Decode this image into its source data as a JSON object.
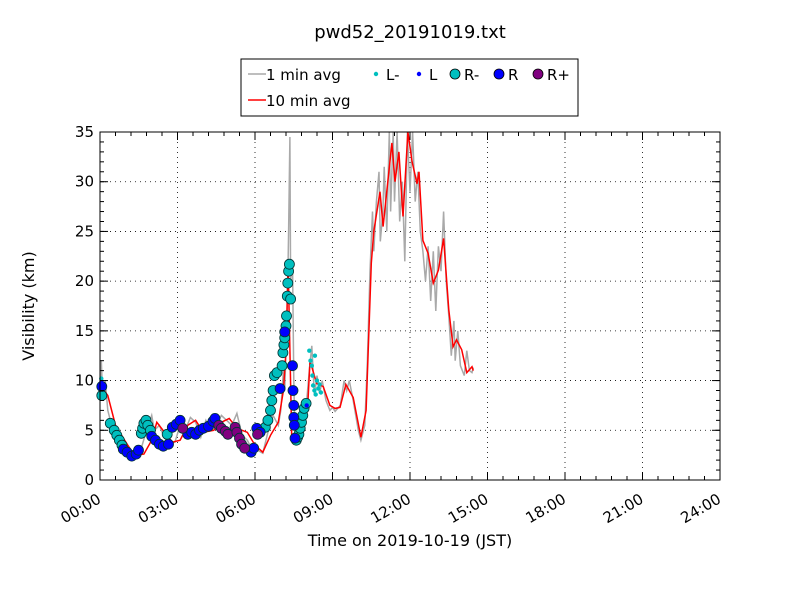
{
  "chart_data": {
    "type": "line",
    "title": "pwd52_20191019.txt",
    "xlabel": "Time on 2019-10-19 (JST)",
    "ylabel": "Visibility (km)",
    "xlim": [
      0,
      24
    ],
    "ylim": [
      0,
      35
    ],
    "x_unit": "hours",
    "xticks": [
      0,
      3,
      6,
      9,
      12,
      15,
      18,
      21,
      24
    ],
    "xtick_labels": [
      "00:00",
      "03:00",
      "06:00",
      "09:00",
      "12:00",
      "15:00",
      "18:00",
      "21:00",
      "24:00"
    ],
    "yticks": [
      0,
      5,
      10,
      15,
      20,
      25,
      30,
      35
    ],
    "ytick_labels": [
      "0",
      "5",
      "10",
      "15",
      "20",
      "25",
      "30",
      "35"
    ],
    "grid": true,
    "legend_placement": "top-center, above plot",
    "legend": [
      "1 min avg",
      "L-",
      "L",
      "R-",
      "R",
      "R+",
      "10 min avg"
    ],
    "colors": {
      "gray": "#a9a9a9",
      "red": "#ff0000",
      "L-": "#00bfbf",
      "L": "#0000ff",
      "R-": "#00bfbf",
      "R": "#0000ff",
      "R+": "#800080"
    },
    "series": [
      {
        "name": "1 min avg",
        "points": [
          [
            0,
            9.8
          ],
          [
            0.05,
            12
          ],
          [
            0.1,
            8.5
          ],
          [
            0.2,
            10
          ],
          [
            0.3,
            7
          ],
          [
            0.45,
            5.5
          ],
          [
            0.6,
            5
          ],
          [
            0.8,
            4
          ],
          [
            1.0,
            3
          ],
          [
            1.2,
            2.3
          ],
          [
            1.4,
            2.6
          ],
          [
            1.6,
            3.2
          ],
          [
            1.8,
            5
          ],
          [
            2.0,
            6.5
          ],
          [
            2.1,
            5
          ],
          [
            2.3,
            5.5
          ],
          [
            2.5,
            4.2
          ],
          [
            2.7,
            3.7
          ],
          [
            2.9,
            3.8
          ],
          [
            3.1,
            5.5
          ],
          [
            3.3,
            5
          ],
          [
            3.5,
            6.3
          ],
          [
            3.7,
            5.8
          ],
          [
            3.9,
            4.3
          ],
          [
            4.1,
            6
          ],
          [
            4.3,
            5
          ],
          [
            4.5,
            5.5
          ],
          [
            4.7,
            6.5
          ],
          [
            4.9,
            6
          ],
          [
            5.1,
            5.5
          ],
          [
            5.3,
            6.7
          ],
          [
            5.5,
            4.5
          ],
          [
            5.7,
            4
          ],
          [
            5.9,
            3
          ],
          [
            6.1,
            3
          ],
          [
            6.3,
            2.7
          ],
          [
            6.5,
            4.8
          ],
          [
            6.7,
            6.5
          ],
          [
            6.9,
            5.5
          ],
          [
            7.0,
            7
          ],
          [
            7.1,
            11
          ],
          [
            7.15,
            9
          ],
          [
            7.25,
            17
          ],
          [
            7.3,
            25
          ],
          [
            7.35,
            34.5
          ],
          [
            7.38,
            20
          ],
          [
            7.45,
            22
          ],
          [
            7.5,
            10
          ],
          [
            7.55,
            4
          ],
          [
            7.6,
            3.5
          ],
          [
            7.7,
            5
          ],
          [
            7.85,
            6.5
          ],
          [
            8.0,
            8
          ],
          [
            8.1,
            11
          ],
          [
            8.2,
            13.5
          ],
          [
            8.3,
            8.5
          ],
          [
            8.4,
            10.5
          ],
          [
            8.5,
            8.7
          ],
          [
            8.6,
            10
          ],
          [
            8.75,
            8
          ],
          [
            8.9,
            7
          ],
          [
            9.0,
            7.3
          ],
          [
            9.1,
            6.9
          ],
          [
            9.3,
            7.5
          ],
          [
            9.45,
            10
          ],
          [
            9.55,
            9
          ],
          [
            9.65,
            10
          ],
          [
            9.8,
            8
          ],
          [
            10.0,
            5
          ],
          [
            10.1,
            4
          ],
          [
            10.25,
            5.5
          ],
          [
            10.35,
            12
          ],
          [
            10.45,
            21
          ],
          [
            10.55,
            27
          ],
          [
            10.6,
            23
          ],
          [
            10.7,
            28
          ],
          [
            10.8,
            31
          ],
          [
            10.85,
            24
          ],
          [
            10.95,
            27
          ],
          [
            11.0,
            31.5
          ],
          [
            11.1,
            25
          ],
          [
            11.2,
            35
          ],
          [
            11.25,
            27
          ],
          [
            11.35,
            35
          ],
          [
            11.4,
            28
          ],
          [
            11.5,
            35
          ],
          [
            11.6,
            26
          ],
          [
            11.7,
            30
          ],
          [
            11.8,
            22
          ],
          [
            11.9,
            35
          ],
          [
            12.0,
            29
          ],
          [
            12.1,
            35
          ],
          [
            12.2,
            28
          ],
          [
            12.3,
            31
          ],
          [
            12.4,
            25
          ],
          [
            12.5,
            23
          ],
          [
            12.6,
            20
          ],
          [
            12.7,
            23.5
          ],
          [
            12.8,
            18
          ],
          [
            12.9,
            23
          ],
          [
            13.0,
            17
          ],
          [
            13.1,
            23.5
          ],
          [
            13.2,
            21
          ],
          [
            13.3,
            27
          ],
          [
            13.4,
            20
          ],
          [
            13.5,
            16.5
          ],
          [
            13.6,
            12.5
          ],
          [
            13.7,
            16
          ],
          [
            13.75,
            12
          ],
          [
            13.85,
            15
          ],
          [
            13.95,
            11.5
          ],
          [
            14.1,
            10.5
          ],
          [
            14.2,
            13
          ],
          [
            14.3,
            11
          ],
          [
            14.4,
            10.8
          ],
          [
            14.45,
            11.3
          ]
        ]
      },
      {
        "name": "10 min avg",
        "points": [
          [
            0,
            9.5
          ],
          [
            0.3,
            8.5
          ],
          [
            0.6,
            5.5
          ],
          [
            0.9,
            4.2
          ],
          [
            1.2,
            3.0
          ],
          [
            1.4,
            2.5
          ],
          [
            1.7,
            2.6
          ],
          [
            2.0,
            4.0
          ],
          [
            2.2,
            5.8
          ],
          [
            2.5,
            4.8
          ],
          [
            2.8,
            3.8
          ],
          [
            3.1,
            4.0
          ],
          [
            3.4,
            5.5
          ],
          [
            3.7,
            6.0
          ],
          [
            4.0,
            4.8
          ],
          [
            4.4,
            5.0
          ],
          [
            4.7,
            5.8
          ],
          [
            5.0,
            6.2
          ],
          [
            5.3,
            5.2
          ],
          [
            5.7,
            4.8
          ],
          [
            6.0,
            3.5
          ],
          [
            6.3,
            2.8
          ],
          [
            6.6,
            4.5
          ],
          [
            6.9,
            5.8
          ],
          [
            7.1,
            9
          ],
          [
            7.2,
            13
          ],
          [
            7.28,
            21.8
          ],
          [
            7.42,
            4.4
          ],
          [
            7.6,
            4.2
          ],
          [
            8.05,
            8
          ],
          [
            8.13,
            12
          ],
          [
            8.39,
            9.7
          ],
          [
            8.64,
            9.4
          ],
          [
            8.9,
            7.5
          ],
          [
            9.1,
            7.2
          ],
          [
            9.29,
            7.3
          ],
          [
            9.52,
            9.6
          ],
          [
            9.8,
            8.3
          ],
          [
            10.1,
            4.3
          ],
          [
            10.3,
            7
          ],
          [
            10.5,
            21.8
          ],
          [
            10.6,
            25
          ],
          [
            10.84,
            29
          ],
          [
            10.96,
            25.5
          ],
          [
            11.3,
            33.9
          ],
          [
            11.42,
            30
          ],
          [
            11.57,
            33
          ],
          [
            11.73,
            26.5
          ],
          [
            11.92,
            35
          ],
          [
            12.08,
            32
          ],
          [
            12.27,
            29.8
          ],
          [
            12.35,
            31
          ],
          [
            12.5,
            24.1
          ],
          [
            12.7,
            22.8
          ],
          [
            12.9,
            19.8
          ],
          [
            13.1,
            21.1
          ],
          [
            13.3,
            24.3
          ],
          [
            13.5,
            17.1
          ],
          [
            13.67,
            13.4
          ],
          [
            13.8,
            14.1
          ],
          [
            14.0,
            13.1
          ],
          [
            14.2,
            10.8
          ],
          [
            14.4,
            11.4
          ],
          [
            14.45,
            11.0
          ]
        ]
      }
    ],
    "markers": {
      "L-": [
        [
          0.05,
          10.2
        ],
        [
          8.1,
          13
        ],
        [
          8.15,
          12
        ],
        [
          8.2,
          11.5
        ],
        [
          8.22,
          10.5
        ],
        [
          8.25,
          9.5
        ],
        [
          8.3,
          9
        ],
        [
          8.32,
          12.5
        ],
        [
          8.35,
          8.6
        ],
        [
          8.4,
          10
        ],
        [
          8.45,
          9.2
        ],
        [
          8.5,
          9.6
        ],
        [
          8.55,
          8.8
        ]
      ],
      "L": [
        [
          0.05,
          9.8
        ],
        [
          8.0,
          7.5
        ]
      ],
      "R-": [
        [
          0.07,
          8.5
        ],
        [
          0.4,
          5.7
        ],
        [
          0.55,
          5
        ],
        [
          0.65,
          4.5
        ],
        [
          0.75,
          4
        ],
        [
          0.85,
          3.5
        ],
        [
          1.6,
          4.7
        ],
        [
          1.65,
          5.2
        ],
        [
          1.7,
          5.7
        ],
        [
          1.78,
          6
        ],
        [
          1.85,
          5.5
        ],
        [
          1.95,
          5
        ],
        [
          2.6,
          4.6
        ],
        [
          6.4,
          5.3
        ],
        [
          6.5,
          6
        ],
        [
          6.6,
          7
        ],
        [
          6.65,
          8
        ],
        [
          6.7,
          9
        ],
        [
          6.75,
          10.5
        ],
        [
          6.85,
          10.8
        ],
        [
          7.05,
          11.5
        ],
        [
          7.08,
          12.8
        ],
        [
          7.12,
          13.6
        ],
        [
          7.15,
          14.3
        ],
        [
          7.2,
          15.5
        ],
        [
          7.22,
          16.5
        ],
        [
          7.25,
          18.5
        ],
        [
          7.27,
          19.8
        ],
        [
          7.3,
          21
        ],
        [
          7.33,
          21.7
        ],
        [
          7.38,
          18.2
        ],
        [
          7.6,
          4.0
        ],
        [
          7.65,
          4.3
        ],
        [
          7.7,
          4.6
        ],
        [
          7.75,
          5.2
        ],
        [
          7.8,
          5.8
        ],
        [
          7.85,
          6.5
        ],
        [
          7.9,
          7.2
        ],
        [
          7.98,
          7.7
        ]
      ],
      "R": [
        [
          0.07,
          9.4
        ],
        [
          0.9,
          3.1
        ],
        [
          1.05,
          2.8
        ],
        [
          1.23,
          2.4
        ],
        [
          1.4,
          2.6
        ],
        [
          1.49,
          3.0
        ],
        [
          2.0,
          4.4
        ],
        [
          2.15,
          4
        ],
        [
          2.3,
          3.6
        ],
        [
          2.45,
          3.4
        ],
        [
          2.65,
          3.6
        ],
        [
          2.8,
          5.3
        ],
        [
          2.95,
          5.6
        ],
        [
          3.1,
          6
        ],
        [
          3.4,
          4.6
        ],
        [
          3.55,
          4.8
        ],
        [
          3.7,
          4.6
        ],
        [
          3.85,
          5.0
        ],
        [
          4.0,
          5.2
        ],
        [
          4.2,
          5.4
        ],
        [
          4.37,
          5.9
        ],
        [
          4.45,
          6.2
        ],
        [
          5.85,
          2.8
        ],
        [
          5.95,
          3.2
        ],
        [
          6.07,
          5.2
        ],
        [
          6.2,
          4.8
        ],
        [
          6.97,
          9.2
        ],
        [
          7.15,
          14.9
        ],
        [
          7.45,
          11.5
        ],
        [
          7.47,
          9
        ],
        [
          7.5,
          7.5
        ],
        [
          7.5,
          6.3
        ],
        [
          7.52,
          5.5
        ],
        [
          7.55,
          4.2
        ]
      ],
      "R+": [
        [
          3.2,
          5.2
        ],
        [
          4.6,
          5.5
        ],
        [
          4.7,
          5.2
        ],
        [
          4.85,
          4.9
        ],
        [
          4.95,
          4.6
        ],
        [
          5.23,
          5.3
        ],
        [
          5.3,
          4.8
        ],
        [
          5.4,
          4.2
        ],
        [
          5.48,
          3.6
        ],
        [
          5.6,
          3.2
        ],
        [
          6.1,
          4.6
        ]
      ]
    }
  }
}
